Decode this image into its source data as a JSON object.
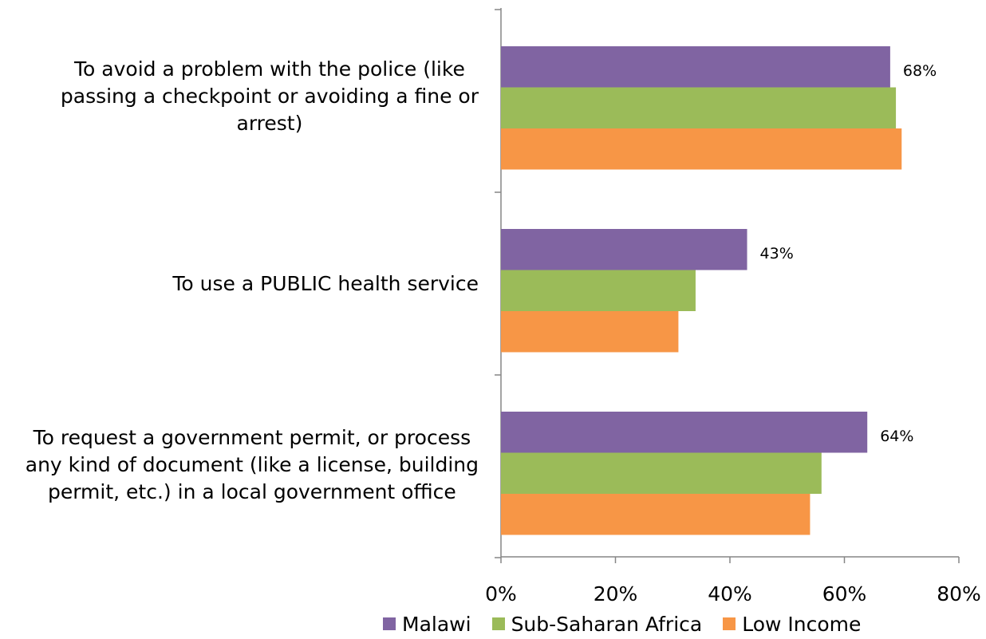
{
  "chart_data": {
    "type": "bar",
    "orientation": "horizontal",
    "categories": [
      "To avoid a problem with the police (like\npassing a checkpoint or avoiding a fine or\narrest)",
      "To use a PUBLIC health service",
      "To request a government permit, or process\nany kind of document (like a license, building\npermit, etc.) in a local government office"
    ],
    "series": [
      {
        "name": "Malawi",
        "color": "#8064A2",
        "values": [
          68,
          43,
          64
        ],
        "labels": [
          "68%",
          "43%",
          "64%"
        ]
      },
      {
        "name": "Sub-Saharan Africa",
        "color": "#9BBB59",
        "values": [
          69,
          34,
          56
        ]
      },
      {
        "name": "Low Income",
        "color": "#F79646",
        "values": [
          70,
          31,
          54
        ]
      }
    ],
    "xlim": [
      0,
      80
    ],
    "xticks": [
      0,
      20,
      40,
      60,
      80
    ],
    "xtick_labels": [
      "0%",
      "20%",
      "40%",
      "60%",
      "80%"
    ],
    "grid": false,
    "legend_position": "bottom"
  }
}
